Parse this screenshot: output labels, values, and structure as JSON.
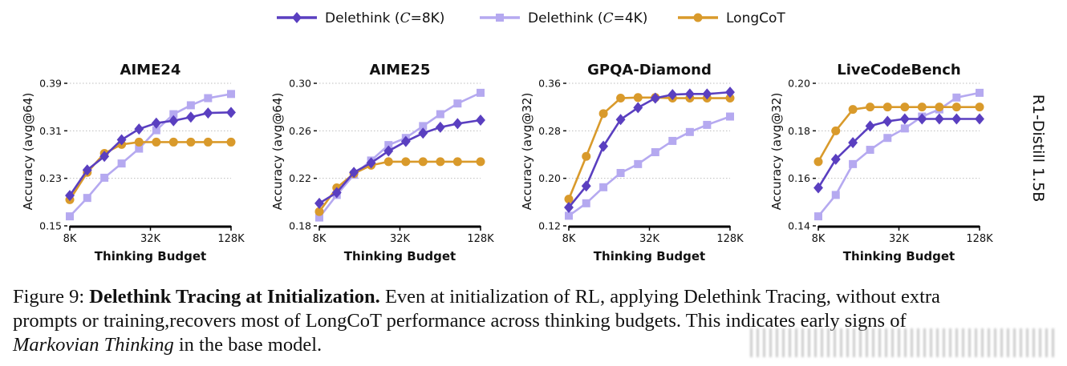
{
  "legend": {
    "items": [
      {
        "label": "Delethink (C=8K)",
        "prefix": "Delethink (",
        "var": "C",
        "suffix": "=8K)",
        "color": "#5a3fc0",
        "marker": "diamond"
      },
      {
        "label": "Delethink (C=4K)",
        "prefix": "Delethink (",
        "var": "C",
        "suffix": "=4K)",
        "color": "#b5a9f0",
        "marker": "square"
      },
      {
        "label": "LongCoT",
        "prefix": "LongCoT",
        "var": "",
        "suffix": "",
        "color": "#d99a2b",
        "marker": "circle"
      }
    ]
  },
  "row_label": "R1-Distill 1.5B",
  "chart_data": [
    {
      "type": "line",
      "title": "AIME24",
      "xlabel": "Thinking Budget",
      "ylabel": "Accuracy (avg@64)",
      "x_scale": "log2",
      "x": [
        8,
        10.8,
        14.5,
        19.5,
        26.3,
        35.4,
        47.6,
        64.1,
        86.2,
        128
      ],
      "xticks": [
        8,
        32,
        128
      ],
      "xtick_labels": [
        "8K",
        "32K",
        "128K"
      ],
      "ylim": [
        0.15,
        0.39
      ],
      "yticks": [
        0.15,
        0.23,
        0.31,
        0.39
      ],
      "ytick_labels": [
        "0.15",
        "0.23",
        "0.31",
        "0.39"
      ],
      "grid": "horizontal-dotted",
      "series": [
        {
          "name": "Delethink (C=8K)",
          "values": [
            0.201,
            0.244,
            0.267,
            0.295,
            0.313,
            0.323,
            0.327,
            0.333,
            0.34,
            0.341
          ]
        },
        {
          "name": "Delethink (C=4K)",
          "values": [
            0.166,
            0.197,
            0.231,
            0.255,
            0.28,
            0.311,
            0.338,
            0.353,
            0.365,
            0.372
          ]
        },
        {
          "name": "LongCoT",
          "values": [
            0.194,
            0.24,
            0.272,
            0.287,
            0.291,
            0.291,
            0.291,
            0.291,
            0.291,
            0.291
          ]
        }
      ]
    },
    {
      "type": "line",
      "title": "AIME25",
      "xlabel": "Thinking Budget",
      "ylabel": "Accuracy (avg@64)",
      "x_scale": "log2",
      "x": [
        8,
        10.8,
        14.5,
        19.5,
        26.3,
        35.4,
        47.6,
        64.1,
        86.2,
        128
      ],
      "xticks": [
        8,
        32,
        128
      ],
      "xtick_labels": [
        "8K",
        "32K",
        "128K"
      ],
      "ylim": [
        0.18,
        0.3
      ],
      "yticks": [
        0.18,
        0.22,
        0.26,
        0.3
      ],
      "ytick_labels": [
        "0.18",
        "0.22",
        "0.26",
        "0.30"
      ],
      "grid": "horizontal-dotted",
      "series": [
        {
          "name": "Delethink (C=8K)",
          "values": [
            0.199,
            0.208,
            0.225,
            0.233,
            0.243,
            0.251,
            0.258,
            0.263,
            0.266,
            0.269
          ]
        },
        {
          "name": "Delethink (C=4K)",
          "values": [
            0.187,
            0.206,
            0.223,
            0.235,
            0.248,
            0.254,
            0.264,
            0.274,
            0.283,
            0.292
          ]
        },
        {
          "name": "LongCoT",
          "values": [
            0.192,
            0.212,
            0.224,
            0.231,
            0.234,
            0.234,
            0.234,
            0.234,
            0.234,
            0.234
          ]
        }
      ]
    },
    {
      "type": "line",
      "title": "GPQA-Diamond",
      "xlabel": "Thinking Budget",
      "ylabel": "Accuracy (avg@32)",
      "x_scale": "log2",
      "x": [
        8,
        10.8,
        14.5,
        19.5,
        26.3,
        35.4,
        47.6,
        64.1,
        86.2,
        128
      ],
      "xticks": [
        8,
        32,
        128
      ],
      "xtick_labels": [
        "8K",
        "32K",
        "128K"
      ],
      "ylim": [
        0.12,
        0.36
      ],
      "yticks": [
        0.12,
        0.2,
        0.28,
        0.36
      ],
      "ytick_labels": [
        "0.12",
        "0.20",
        "0.28",
        "0.36"
      ],
      "grid": "horizontal-dotted",
      "series": [
        {
          "name": "Delethink (C=8K)",
          "values": [
            0.151,
            0.187,
            0.254,
            0.299,
            0.319,
            0.335,
            0.341,
            0.342,
            0.342,
            0.345
          ]
        },
        {
          "name": "Delethink (C=4K)",
          "values": [
            0.137,
            0.158,
            0.185,
            0.209,
            0.224,
            0.244,
            0.263,
            0.278,
            0.29,
            0.304
          ]
        },
        {
          "name": "LongCoT",
          "values": [
            0.165,
            0.237,
            0.309,
            0.335,
            0.336,
            0.336,
            0.335,
            0.335,
            0.335,
            0.335
          ]
        }
      ]
    },
    {
      "type": "line",
      "title": "LiveCodeBench",
      "xlabel": "Thinking Budget",
      "ylabel": "Accuracy (avg@32)",
      "x_scale": "log2",
      "x": [
        8,
        10.8,
        14.5,
        19.5,
        26.3,
        35.4,
        47.6,
        64.1,
        86.2,
        128
      ],
      "xticks": [
        8,
        32,
        128
      ],
      "xtick_labels": [
        "8K",
        "32K",
        "128K"
      ],
      "ylim": [
        0.14,
        0.2
      ],
      "yticks": [
        0.14,
        0.16,
        0.18,
        0.2
      ],
      "ytick_labels": [
        "0.14",
        "0.16",
        "0.18",
        "0.20"
      ],
      "grid": "horizontal-dotted",
      "series": [
        {
          "name": "Delethink (C=8K)",
          "values": [
            0.156,
            0.168,
            0.175,
            0.182,
            0.184,
            0.185,
            0.185,
            0.185,
            0.185,
            0.185
          ]
        },
        {
          "name": "Delethink (C=4K)",
          "values": [
            0.144,
            0.153,
            0.166,
            0.172,
            0.177,
            0.181,
            0.186,
            0.189,
            0.194,
            0.196
          ]
        },
        {
          "name": "LongCoT",
          "values": [
            0.167,
            0.18,
            0.189,
            0.19,
            0.19,
            0.19,
            0.19,
            0.19,
            0.19,
            0.19
          ]
        }
      ]
    }
  ],
  "caption": {
    "label": "Figure 9:",
    "title": "Delethink Tracing at Initialization.",
    "line1_rest": "Even at initialization of RL, applying Delethink Tracing, without extra",
    "line2": "prompts or training,recovers most of LongCoT performance across thinking budgets.  This indicates early signs of",
    "line3_italic": "Markovian Thinking",
    "line3_rest": " in the base model."
  }
}
